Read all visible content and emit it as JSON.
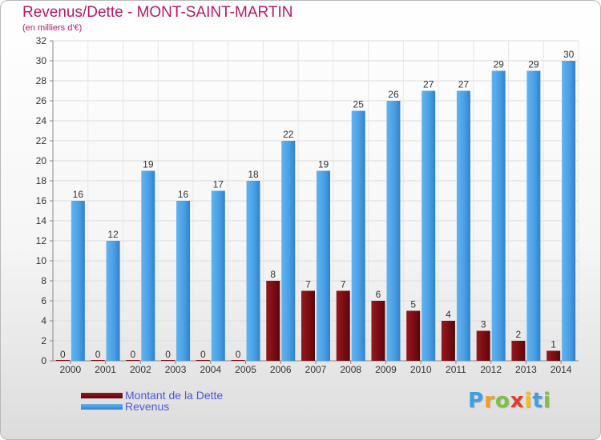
{
  "chart_data": {
    "type": "bar",
    "title": "Revenus/Dette - MONT-SAINT-MARTIN",
    "subtitle": "(en milliers d'€)",
    "categories": [
      "2000",
      "2001",
      "2002",
      "2003",
      "2004",
      "2005",
      "2006",
      "2007",
      "2008",
      "2009",
      "2010",
      "2011",
      "2012",
      "2013",
      "2014"
    ],
    "series": [
      {
        "name": "Montant de la Dette",
        "color": "#7a0d12",
        "values": [
          0,
          0,
          0,
          0,
          0,
          0,
          8,
          7,
          7,
          6,
          5,
          4,
          3,
          2,
          1
        ]
      },
      {
        "name": "Revenus",
        "color": "#3f97e0",
        "values": [
          16,
          12,
          19,
          16,
          17,
          18,
          22,
          19,
          25,
          26,
          27,
          27,
          29,
          29,
          30
        ]
      }
    ],
    "ylim": [
      0,
      32
    ],
    "yticks": [
      0,
      2,
      4,
      6,
      8,
      10,
      12,
      14,
      16,
      18,
      20,
      22,
      24,
      26,
      28,
      30,
      32
    ],
    "grid": true,
    "legend_position": "bottom-left"
  },
  "brand": {
    "letters": [
      "P",
      "r",
      "o",
      "x",
      "i",
      "t",
      "i"
    ],
    "colors": [
      "#3fa0e0",
      "#f0a020",
      "#7cc242",
      "#e0402a",
      "#f0c020",
      "#3fa0e0",
      "#7cc242"
    ]
  }
}
